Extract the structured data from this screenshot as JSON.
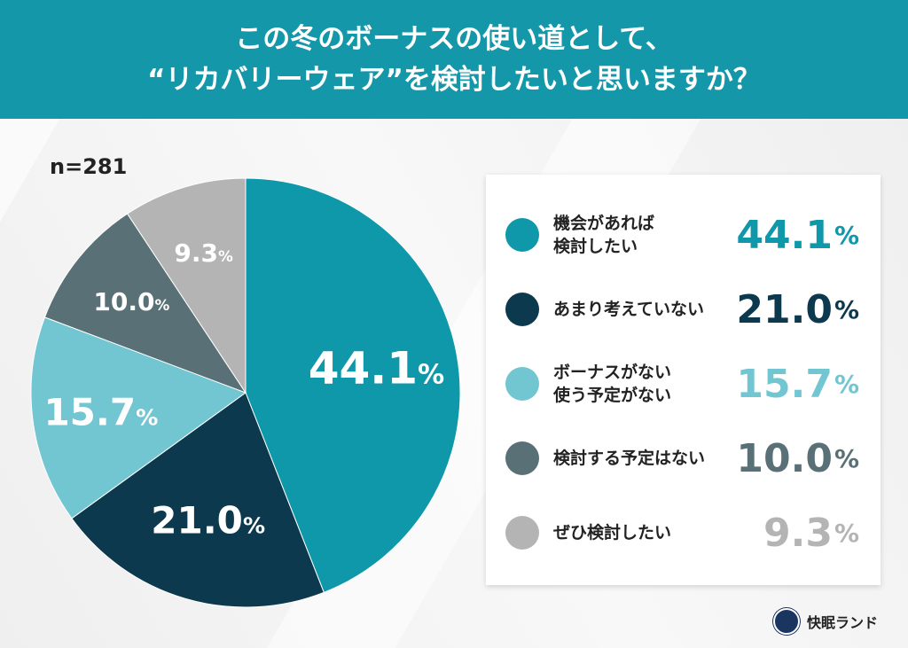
{
  "title_line1": "この冬のボーナスの使い道として、",
  "title_line2": "“リカバリーウェア”を検討したいと思いますか？",
  "sample": "n=281",
  "brand": "快眠ランド",
  "chart_data": {
    "type": "pie",
    "title": "この冬のボーナスの使い道として、“リカバリーウェア”を検討したいと思いますか？",
    "start": "top",
    "direction": "clockwise",
    "unit": "%",
    "slices": [
      {
        "label": "機会があれば検討したい",
        "value": 44.1,
        "display": "44.1",
        "color": "#0f97aa"
      },
      {
        "label": "あまり考えていない",
        "value": 21.0,
        "display": "21.0",
        "color": "#0c394d"
      },
      {
        "label": "ボーナスがない 使う予定がない",
        "value": 15.7,
        "display": "15.7",
        "color": "#71c6d1"
      },
      {
        "label": "検討する予定はない",
        "value": 10.0,
        "display": "10.0",
        "color": "#5a7077"
      },
      {
        "label": "ぜひ検討したい",
        "value": 9.3,
        "display": "9.3",
        "color": "#b4b4b4"
      }
    ],
    "legend_position": "right"
  }
}
